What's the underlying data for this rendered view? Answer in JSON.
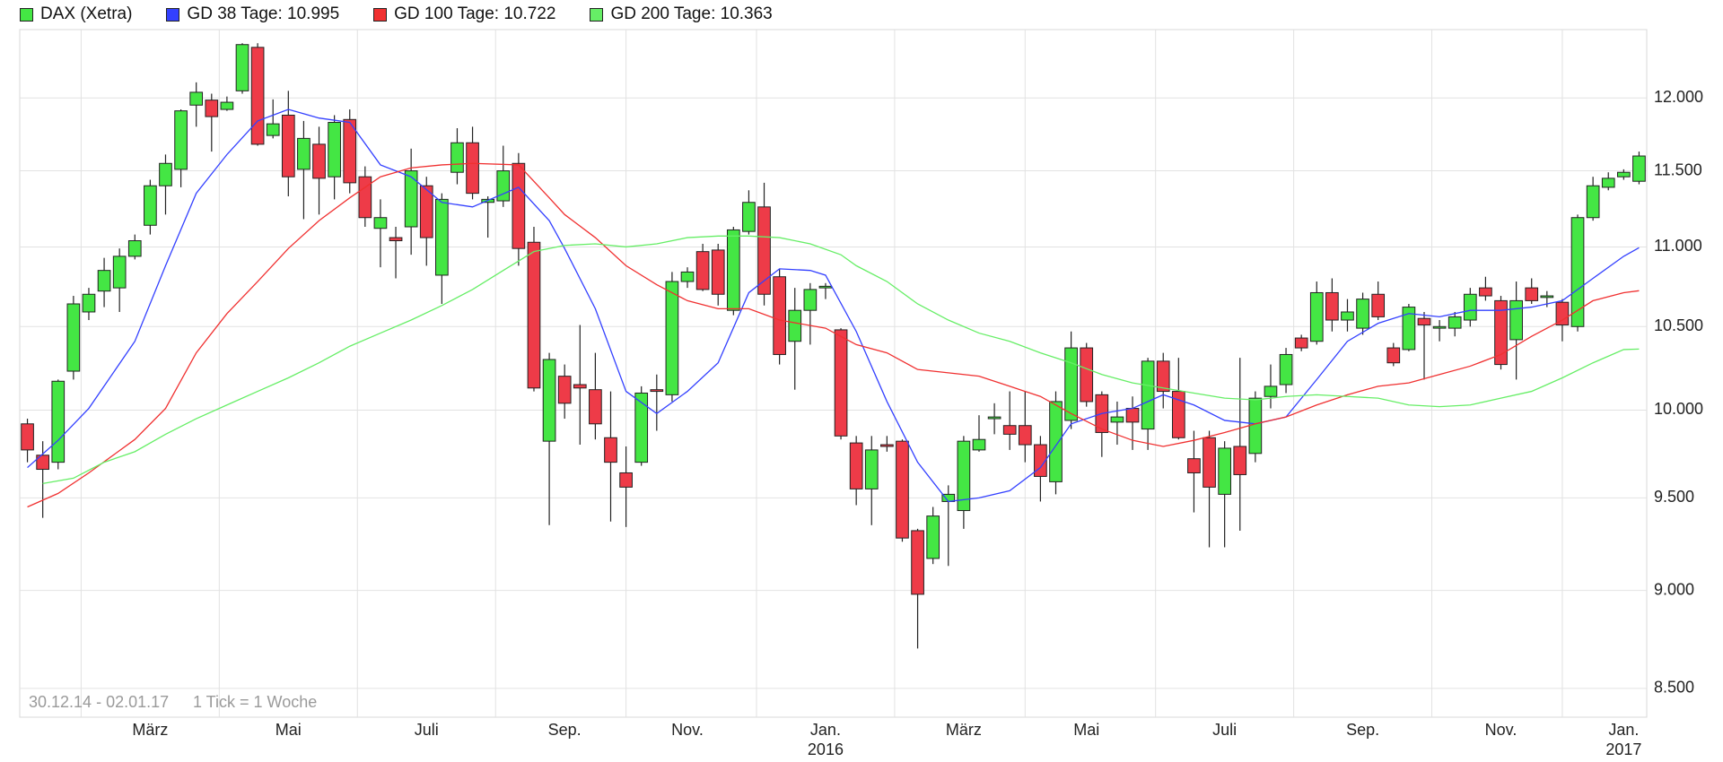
{
  "chart_data": {
    "type": "candlestick",
    "name": "DAX (Xetra)",
    "color_up": "#44e644",
    "color_down": "#ee3b48",
    "log": true,
    "grid": true,
    "ylim": [
      8358,
      12489
    ],
    "yticks": [
      {
        "value": 8500,
        "label": "8.500"
      },
      {
        "value": 9000,
        "label": "9.000"
      },
      {
        "value": 9500,
        "label": "9.500"
      },
      {
        "value": 10000,
        "label": "10.000"
      },
      {
        "value": 10500,
        "label": "10.500"
      },
      {
        "value": 11000,
        "label": "11.000"
      },
      {
        "value": 11500,
        "label": "11.500"
      },
      {
        "value": 12000,
        "label": "12.000"
      }
    ],
    "xticks": [
      {
        "value": 8,
        "label": "März"
      },
      {
        "value": 17,
        "label": "Mai"
      },
      {
        "value": 26,
        "label": "Juli"
      },
      {
        "value": 35,
        "label": "Sep."
      },
      {
        "value": 43,
        "label": "Nov."
      },
      {
        "value": 52,
        "label": "Jan."
      },
      {
        "value": 61,
        "label": "März"
      },
      {
        "value": 69,
        "label": "Mai"
      },
      {
        "value": 78,
        "label": "Juli"
      },
      {
        "value": 87,
        "label": "Sep."
      },
      {
        "value": 96,
        "label": "Nov."
      },
      {
        "value": 104,
        "label": "Jan."
      }
    ],
    "year_ticks": [
      {
        "value": 52,
        "label": "2016"
      },
      {
        "value": 104,
        "label": "2017"
      }
    ],
    "annotations": [
      "30.12.14 - 02.01.17",
      "1 Tick = 1 Woche"
    ],
    "open": [
      9920,
      9740,
      9700,
      10230,
      10590,
      10720,
      10740,
      10940,
      11140,
      11400,
      11510,
      11950,
      11985,
      11920,
      12050,
      12360,
      11740,
      11880,
      11510,
      11680,
      11460,
      11850,
      11460,
      11120,
      11060,
      11130,
      11400,
      10820,
      11490,
      11690,
      11290,
      11300,
      11550,
      11030,
      9820,
      10200,
      10150,
      10120,
      9840,
      9640,
      9700,
      10120,
      10090,
      10780,
      10970,
      10980,
      10600,
      11100,
      11260,
      10810,
      10410,
      10600,
      10740,
      10480,
      9810,
      9550,
      9800,
      9820,
      9320,
      9170,
      9480,
      9430,
      9770,
      9950,
      9910,
      9910,
      9800,
      9590,
      9940,
      10370,
      10090,
      9930,
      10010,
      9890,
      10290,
      10110,
      9720,
      9840,
      9520,
      9790,
      9750,
      10080,
      10150,
      10430,
      10410,
      10710,
      10540,
      10490,
      10700,
      10370,
      10360,
      10550,
      10490,
      10490,
      10540,
      10740,
      10660,
      10420,
      10740,
      10680,
      10650,
      10500,
      11190,
      11390,
      11460,
      11430
    ],
    "high": [
      9950,
      9820,
      10180,
      10690,
      10740,
      10930,
      10990,
      11080,
      11440,
      11610,
      11920,
      12110,
      12030,
      12010,
      12390,
      12390,
      11990,
      12050,
      11840,
      11800,
      11880,
      11920,
      11530,
      11310,
      11130,
      11650,
      11460,
      11350,
      11790,
      11800,
      11330,
      11670,
      11620,
      11130,
      10340,
      10270,
      10510,
      10340,
      10110,
      9790,
      10140,
      10210,
      10840,
      10870,
      11020,
      11020,
      11130,
      11370,
      11420,
      10860,
      10740,
      10770,
      10770,
      10490,
      9850,
      9850,
      9850,
      9830,
      9330,
      9450,
      9570,
      9850,
      9970,
      10040,
      10110,
      10110,
      9850,
      10110,
      10470,
      10400,
      10110,
      10050,
      10080,
      10310,
      10340,
      10310,
      9880,
      9880,
      9820,
      10310,
      10110,
      10270,
      10370,
      10450,
      10780,
      10800,
      10670,
      10710,
      10780,
      10400,
      10640,
      10590,
      10540,
      10590,
      10740,
      10810,
      10690,
      10780,
      10800,
      10720,
      10670,
      11210,
      11460,
      11490,
      11510,
      11630
    ],
    "low": [
      9700,
      9390,
      9660,
      10180,
      10540,
      10620,
      10590,
      10920,
      11080,
      11210,
      11390,
      11800,
      11630,
      11910,
      12030,
      11670,
      11720,
      11330,
      11180,
      11210,
      11310,
      11350,
      11130,
      10870,
      10800,
      10950,
      10880,
      10640,
      11410,
      11310,
      11060,
      11260,
      10880,
      10110,
      9350,
      9950,
      9800,
      9830,
      9370,
      9340,
      9680,
      9880,
      10050,
      10740,
      10720,
      10630,
      10570,
      11080,
      10630,
      10270,
      10120,
      10390,
      10670,
      9830,
      9460,
      9350,
      9760,
      9260,
      8700,
      9140,
      9130,
      9330,
      9760,
      9860,
      9770,
      9700,
      9480,
      9520,
      9890,
      10020,
      9730,
      9800,
      9770,
      9770,
      10010,
      9830,
      9420,
      9230,
      9230,
      9320,
      9700,
      10010,
      10100,
      10350,
      10390,
      10470,
      10470,
      10450,
      10540,
      10260,
      10350,
      10180,
      10410,
      10440,
      10500,
      10660,
      10240,
      10180,
      10640,
      10620,
      10410,
      10470,
      11170,
      11370,
      11440,
      11410
    ],
    "close": [
      9770,
      9660,
      10170,
      10640,
      10700,
      10850,
      10940,
      11040,
      11400,
      11550,
      11910,
      12040,
      11870,
      11970,
      12380,
      11680,
      11820,
      11460,
      11720,
      11450,
      11830,
      11420,
      11190,
      11190,
      11040,
      11500,
      11060,
      11310,
      11690,
      11350,
      11310,
      11500,
      10990,
      10130,
      10300,
      10040,
      10130,
      9920,
      9700,
      9560,
      10100,
      10110,
      10780,
      10840,
      10730,
      10700,
      11110,
      11290,
      10700,
      10330,
      10600,
      10730,
      10750,
      9850,
      9550,
      9770,
      9790,
      9280,
      8980,
      9400,
      9520,
      9820,
      9830,
      9960,
      9860,
      9800,
      9620,
      10050,
      10370,
      10050,
      9870,
      9960,
      9930,
      10290,
      10110,
      9840,
      9640,
      9560,
      9780,
      9630,
      10070,
      10140,
      10330,
      10370,
      10710,
      10540,
      10590,
      10670,
      10560,
      10280,
      10620,
      10510,
      10500,
      10560,
      10700,
      10690,
      10270,
      10660,
      10660,
      10690,
      10510,
      11190,
      11400,
      11450,
      11490,
      11600
    ],
    "series": [
      {
        "name": "GD 38 Tage: 10.995",
        "color": "#3340ff",
        "x": [
          0,
          2,
          4,
          7,
          9,
          11,
          13,
          15,
          17,
          19,
          21,
          23,
          25,
          27,
          29,
          32,
          34,
          35,
          37,
          39,
          41,
          43,
          45,
          47,
          49,
          51,
          52,
          54,
          56,
          58,
          60,
          62,
          64,
          66,
          68,
          70,
          72,
          74,
          76,
          78,
          80,
          82,
          84,
          86,
          88,
          90,
          92,
          94,
          96,
          98,
          100,
          102,
          104,
          105
        ],
        "values": [
          9670,
          9825,
          10010,
          10410,
          10880,
          11350,
          11610,
          11840,
          11920,
          11860,
          11830,
          11540,
          11460,
          11290,
          11260,
          11390,
          11170,
          10990,
          10610,
          10110,
          9980,
          10110,
          10280,
          10710,
          10860,
          10850,
          10820,
          10470,
          10050,
          9700,
          9480,
          9500,
          9540,
          9670,
          9920,
          9980,
          10010,
          10090,
          10030,
          9940,
          9920,
          9960,
          10180,
          10410,
          10520,
          10580,
          10560,
          10600,
          10600,
          10620,
          10660,
          10800,
          10940,
          10995
        ]
      },
      {
        "name": "GD 100 Tage: 10.722",
        "color": "#f03030",
        "x": [
          0,
          2,
          4,
          7,
          9,
          11,
          13,
          15,
          17,
          19,
          21,
          23,
          25,
          27,
          29,
          32,
          34,
          35,
          37,
          39,
          41,
          43,
          45,
          47,
          49,
          52,
          54,
          56,
          58,
          60,
          62,
          64,
          66,
          68,
          70,
          72,
          74,
          76,
          78,
          80,
          82,
          84,
          86,
          88,
          90,
          92,
          94,
          96,
          98,
          100,
          102,
          104,
          105
        ],
        "values": [
          9450,
          9525,
          9640,
          9830,
          10010,
          10340,
          10580,
          10780,
          10990,
          11170,
          11320,
          11460,
          11520,
          11540,
          11550,
          11540,
          11320,
          11210,
          11060,
          10880,
          10760,
          10660,
          10610,
          10610,
          10540,
          10490,
          10390,
          10340,
          10240,
          10220,
          10200,
          10140,
          10080,
          9980,
          9890,
          9825,
          9790,
          9825,
          9870,
          9920,
          9960,
          10030,
          10090,
          10140,
          10160,
          10210,
          10260,
          10330,
          10440,
          10540,
          10660,
          10710,
          10722
        ]
      },
      {
        "name": "GD 200 Tage: 10.363",
        "color": "#66ee66",
        "x": [
          1,
          3,
          5,
          7,
          9,
          11,
          13,
          15,
          17,
          19,
          21,
          23,
          25,
          27,
          29,
          31,
          33,
          35,
          37,
          39,
          41,
          43,
          45,
          47,
          49,
          51,
          53,
          54,
          56,
          58,
          60,
          62,
          64,
          66,
          68,
          70,
          72,
          74,
          76,
          78,
          80,
          82,
          84,
          86,
          88,
          90,
          92,
          94,
          96,
          98,
          100,
          102,
          104,
          105
        ],
        "values": [
          9580,
          9610,
          9700,
          9760,
          9860,
          9950,
          10030,
          10110,
          10190,
          10280,
          10380,
          10460,
          10540,
          10630,
          10730,
          10850,
          10970,
          11010,
          11020,
          11000,
          11020,
          11060,
          11070,
          11070,
          11060,
          11020,
          10950,
          10880,
          10780,
          10640,
          10540,
          10460,
          10410,
          10340,
          10280,
          10210,
          10160,
          10130,
          10100,
          10070,
          10060,
          10080,
          10090,
          10080,
          10070,
          10030,
          10020,
          10030,
          10070,
          10110,
          10190,
          10280,
          10360,
          10363
        ]
      }
    ]
  }
}
